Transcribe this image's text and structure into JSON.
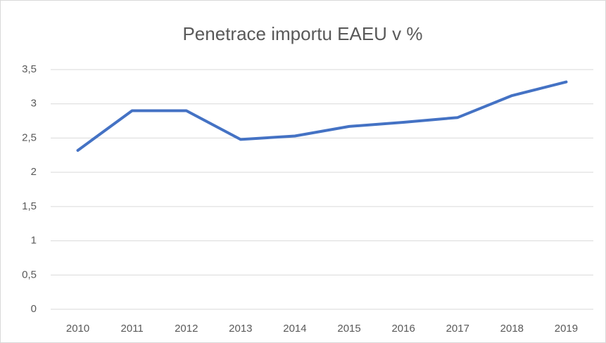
{
  "chart_data": {
    "type": "line",
    "title": "Penetrace importu EAEU v %",
    "categories": [
      "2010",
      "2011",
      "2012",
      "2013",
      "2014",
      "2015",
      "2016",
      "2017",
      "2018",
      "2019"
    ],
    "series": [
      {
        "name": "Penetrace importu EAEU v %",
        "color": "#4472c4",
        "values": [
          2.32,
          2.9,
          2.9,
          2.48,
          2.53,
          2.67,
          2.73,
          2.8,
          3.12,
          3.32
        ]
      }
    ],
    "ylim": [
      0,
      3.5
    ],
    "yticks": [
      0,
      {
        "value": 0.5,
        "label": "0,5"
      },
      1,
      {
        "value": 1.5,
        "label": "1,5"
      },
      2,
      {
        "value": 2.5,
        "label": "2,5"
      },
      3,
      {
        "value": 3.5,
        "label": "3,5"
      }
    ],
    "grid": true
  }
}
